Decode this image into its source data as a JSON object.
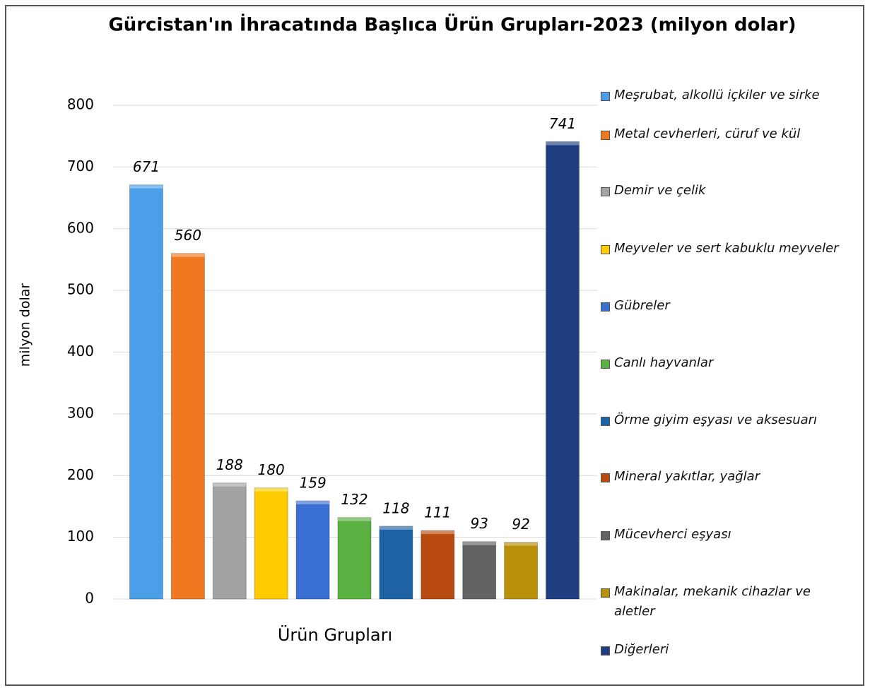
{
  "chart_data": {
    "type": "bar",
    "title": "Gürcistan'ın İhracatında Başlıca Ürün Grupları-2023  (milyon dolar)",
    "y_label": "milyon dolar",
    "categories": [
      "Ürün Grupları"
    ],
    "series": [
      {
        "name": "Meşrubat, alkollü içkiler ve sirke",
        "color": "#4a9fe8",
        "values": [
          671
        ]
      },
      {
        "name": "Metal cevherleri, cüruf ve kül",
        "color": "#f07820",
        "values": [
          560
        ]
      },
      {
        "name": "Demir ve çelik",
        "color": "#a3a3a3",
        "values": [
          188
        ]
      },
      {
        "name": "Meyveler ve sert kabuklu meyveler",
        "color": "#ffcc00",
        "values": [
          180
        ]
      },
      {
        "name": "Gübreler",
        "color": "#3a70d4",
        "values": [
          159
        ]
      },
      {
        "name": "Canlı hayvanlar",
        "color": "#5ab040",
        "values": [
          132
        ]
      },
      {
        "name": "Örme giyim eşyası ve aksesuarı",
        "color": "#1e62a6",
        "values": [
          118
        ]
      },
      {
        "name": "Mineral yakıtlar, yağlar",
        "color": "#b84a10",
        "values": [
          111
        ]
      },
      {
        "name": "Mücevherci eşyası",
        "color": "#636363",
        "values": [
          93
        ]
      },
      {
        "name": "Makinalar, mekanik cihazlar ve aletler",
        "color": "#b8900a",
        "values": [
          92
        ]
      },
      {
        "name": "Diğerleri",
        "color": "#1f3f82",
        "values": [
          741
        ]
      }
    ],
    "ylim": [
      0,
      800
    ],
    "yticks": [
      0,
      100,
      200,
      300,
      400,
      500,
      600,
      700,
      800
    ],
    "grid": true,
    "legend": "right"
  }
}
